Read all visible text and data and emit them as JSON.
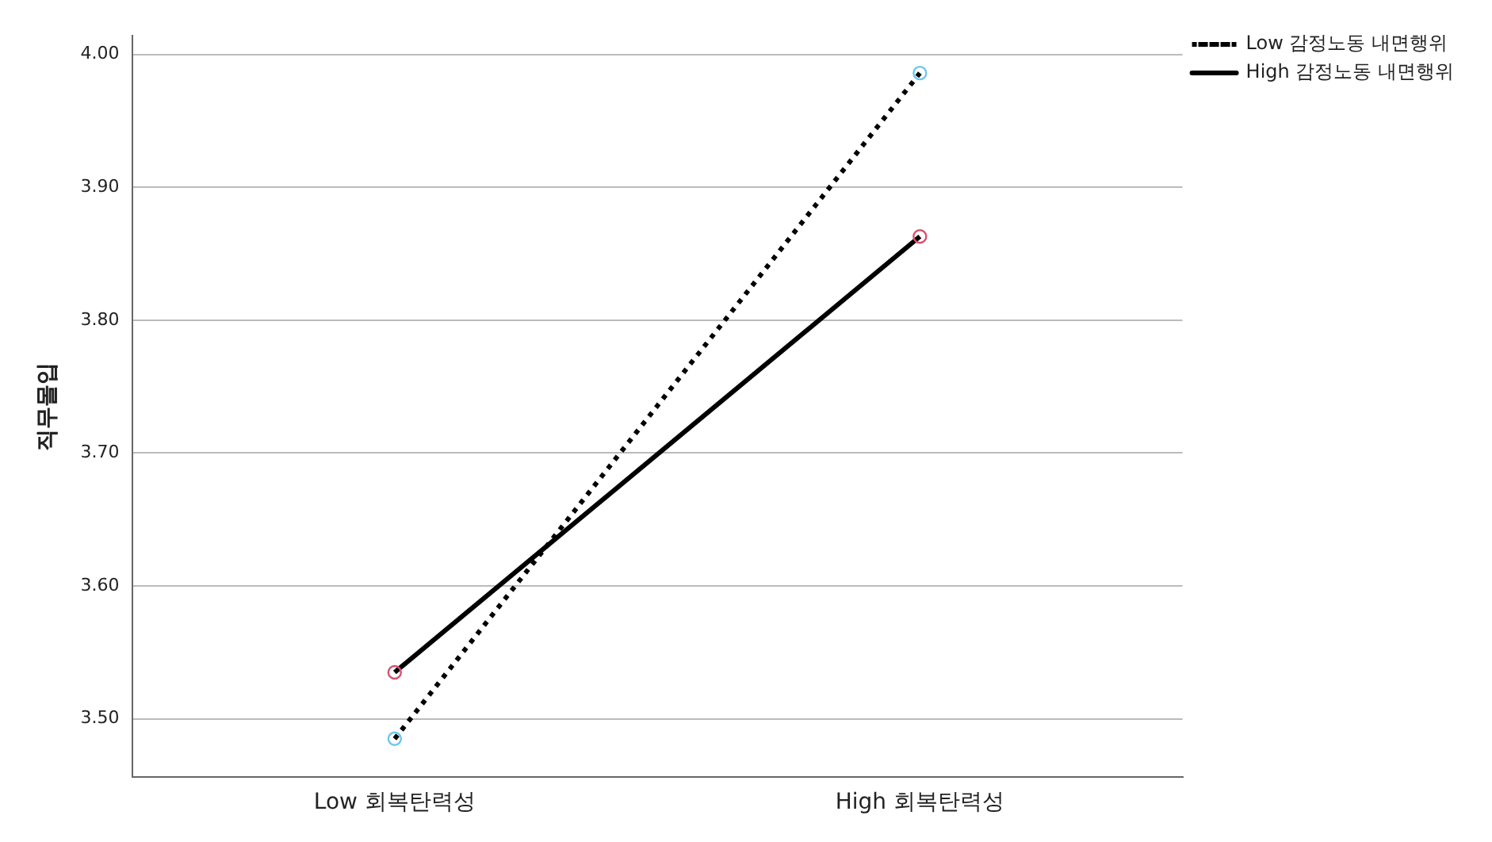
{
  "chart_data": {
    "type": "line",
    "ylabel": "직무몰입",
    "categories": [
      "Low 회복탄력성",
      "High 회복탄력성"
    ],
    "series": [
      {
        "name": "Low 감정노동 내면행위",
        "color": "#000000",
        "colors": [
          "#6ec6ef",
          "#6ec6ef"
        ],
        "line_style": "dotted",
        "values": [
          3.485,
          3.986
        ]
      },
      {
        "name": "High 감정노동 내면행위",
        "color": "#000000",
        "colors": [
          "#d9506e",
          "#d9506e"
        ],
        "line_style": "solid",
        "values": [
          3.535,
          3.863
        ]
      }
    ],
    "ylim": [
      3.456,
      4.014
    ],
    "yticks": [
      {
        "value": 3.5,
        "label": "3.50"
      },
      {
        "value": 3.6,
        "label": "3.60"
      },
      {
        "value": 3.7,
        "label": "3.70"
      },
      {
        "value": 3.8,
        "label": "3.80"
      },
      {
        "value": 3.9,
        "label": "3.90"
      },
      {
        "value": 4.0,
        "label": "4.00"
      }
    ],
    "grid": "y",
    "legend": "top right",
    "marker": "circle"
  }
}
